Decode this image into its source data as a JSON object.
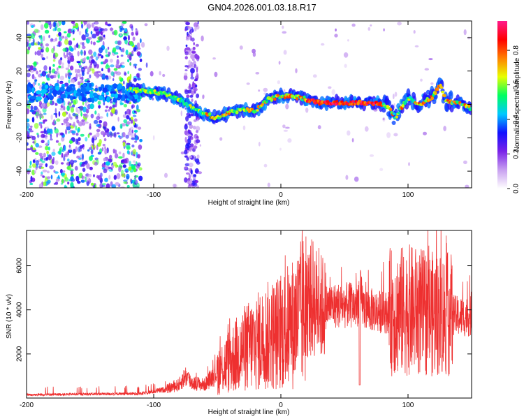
{
  "figure_title": "GN04.2026.001.03.18.R17",
  "colors": {
    "snr_line": "#ee3030",
    "scatter_purple": "#7a22e8",
    "frame": "#000000"
  },
  "colorbar": {
    "label": "Normalized spectral amplitude",
    "ticks": [
      "0.0",
      "0.2",
      "0.4",
      "0.6",
      "0.8"
    ],
    "tick_values": [
      0.0,
      0.2,
      0.4,
      0.6,
      0.8
    ],
    "range": [
      0,
      0.97
    ],
    "stops": [
      "#ffffff",
      "#c8a0f0",
      "#7a22e8",
      "#1010ff",
      "#00c8ff",
      "#00ff60",
      "#e8ff00",
      "#ff8000",
      "#ff0000",
      "#ff1a8c"
    ]
  },
  "chart_data": [
    {
      "type": "heatmap",
      "xlabel": "Height of straight line (km)",
      "ylabel": "Frequency (Hz)",
      "xlim": [
        -200,
        150
      ],
      "ylim": [
        -50,
        50
      ],
      "xticks": [
        -200,
        -100,
        0,
        100
      ],
      "yticks": [
        -40,
        -20,
        0,
        20,
        40
      ],
      "ridge": {
        "x": [
          -120,
          -105,
          -90,
          -80,
          -70,
          -60,
          -50,
          -40,
          -30,
          -20,
          -10,
          0,
          10,
          20,
          30,
          40,
          50,
          60,
          70,
          80,
          85,
          90,
          100,
          110,
          120,
          125,
          130,
          140,
          150
        ],
        "y": [
          9,
          8,
          6,
          3,
          -2,
          -6,
          -8,
          -5,
          -3,
          -4,
          3,
          5,
          5,
          3,
          1,
          1,
          1,
          1,
          1,
          0,
          -2,
          -8,
          4,
          0,
          5,
          12,
          2,
          1,
          -3
        ]
      }
    },
    {
      "type": "line",
      "xlabel": "Height of straight line (km)",
      "ylabel": "SNR (10 * v/v)",
      "xlim": [
        -200,
        150
      ],
      "ylim": [
        0,
        7600
      ],
      "xticks": [
        -200,
        -100,
        0,
        100
      ],
      "yticks": [
        2000,
        4000,
        6000
      ],
      "envelope": {
        "x": [
          -200,
          -150,
          -110,
          -90,
          -80,
          -75,
          -70,
          -60,
          -50,
          -40,
          -30,
          -20,
          -10,
          0,
          10,
          20,
          25,
          30,
          40,
          50,
          60,
          62,
          65,
          70,
          80,
          90,
          100,
          110,
          120,
          130,
          140,
          150
        ],
        "y": [
          150,
          180,
          200,
          400,
          600,
          1000,
          700,
          600,
          1200,
          1700,
          2200,
          2500,
          2800,
          3000,
          3400,
          4100,
          4600,
          4100,
          4200,
          4200,
          4200,
          4800,
          4100,
          4000,
          3900,
          3900,
          4000,
          3900,
          3800,
          3800,
          3700,
          3700
        ]
      }
    }
  ]
}
